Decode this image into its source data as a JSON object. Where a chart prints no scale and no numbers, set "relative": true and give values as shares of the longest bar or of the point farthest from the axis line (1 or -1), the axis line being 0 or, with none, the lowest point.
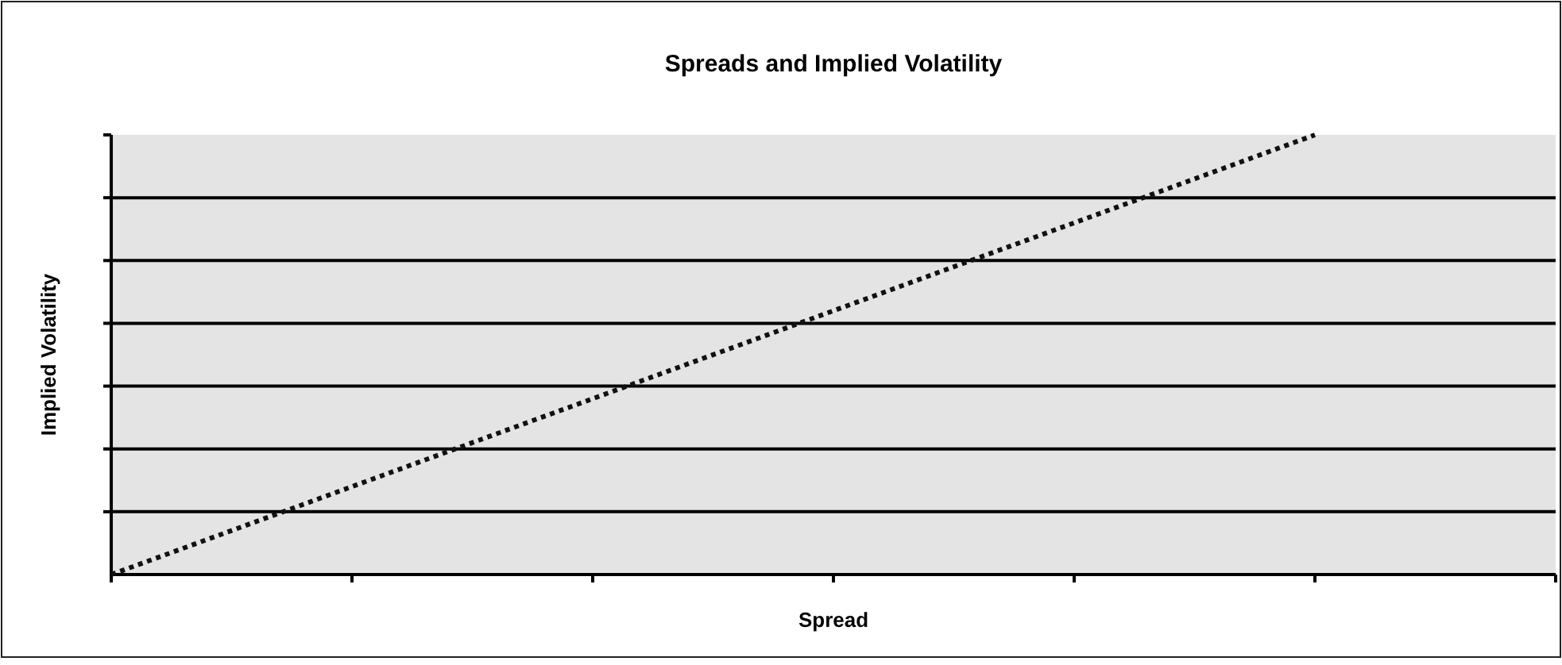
{
  "chart_data": {
    "type": "line",
    "title": "Spreads and Implied Volatility",
    "xlabel": "Spread",
    "ylabel": "Implied Volatility",
    "categories": [
      null,
      null,
      null,
      null,
      null,
      null,
      null
    ],
    "series": [
      {
        "color": "#111111",
        "values": [
          0,
          0.2,
          0.4,
          0.6,
          0.8,
          1,
          null
        ]
      }
    ],
    "relative": true,
    "grid": "y",
    "line_style": "dotted",
    "marker": "none"
  }
}
